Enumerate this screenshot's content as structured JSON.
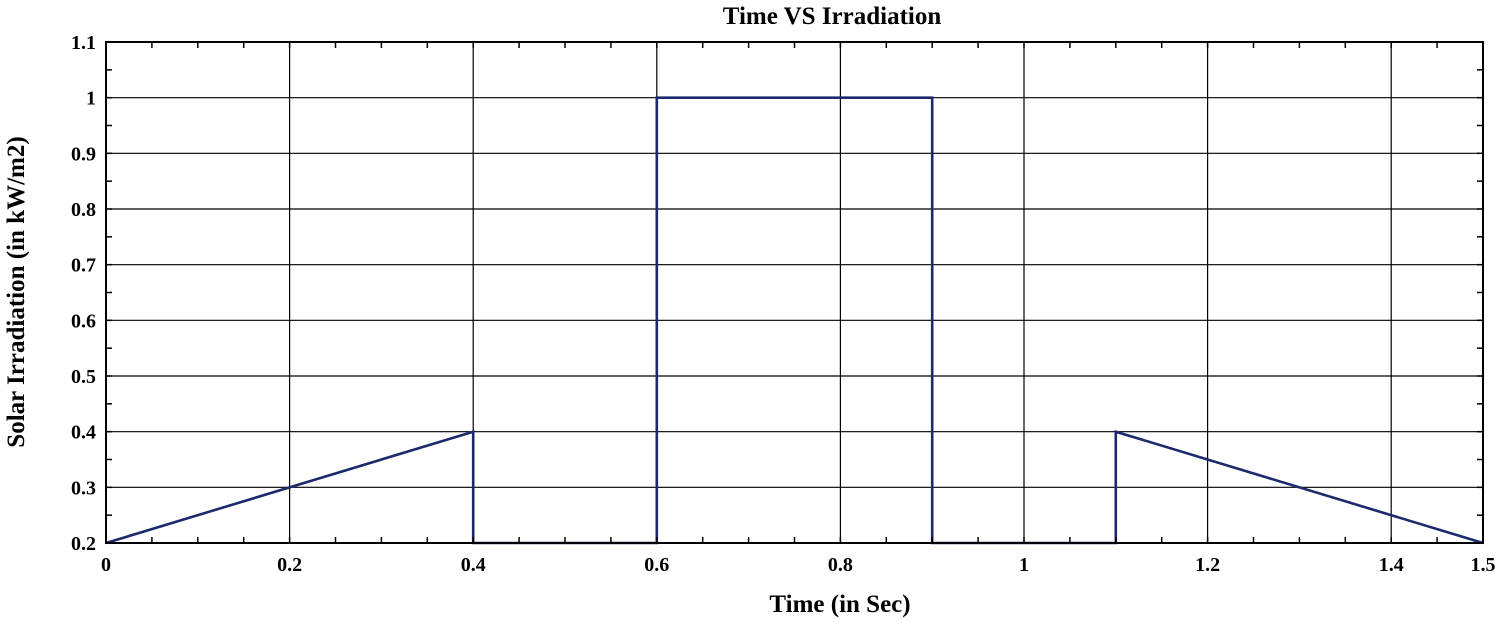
{
  "chart_data": {
    "type": "line",
    "title": "Time VS Irradiation",
    "xlabel": "Time (in Sec)",
    "ylabel": "Solar Irradiation (in kW/m2)",
    "xlim": [
      0,
      1.5
    ],
    "ylim": [
      0.2,
      1.1
    ],
    "xticks": [
      0,
      0.2,
      0.4,
      0.6,
      0.8,
      1,
      1.2,
      1.4,
      1.5
    ],
    "xtick_labels": [
      "0",
      "0.2",
      "0.4",
      "0.6",
      "0.8",
      "1",
      "1.2",
      "1.4",
      "1.5"
    ],
    "yticks": [
      0.2,
      0.3,
      0.4,
      0.5,
      0.6,
      0.7,
      0.8,
      0.9,
      1,
      1.1
    ],
    "ytick_labels": [
      "0.2",
      "0.3",
      "0.4",
      "0.5",
      "0.6",
      "0.7",
      "0.8",
      "0.9",
      "1",
      "1.1"
    ],
    "grid": true,
    "series": [
      {
        "color": "#1a2a6c",
        "x": [
          0,
          0.4,
          0.4,
          0.6,
          0.6,
          0.9,
          0.9,
          1.1,
          1.1,
          1.5
        ],
        "y": [
          0.2,
          0.4,
          0.2,
          0.2,
          1.0,
          1.0,
          0.2,
          0.2,
          0.4,
          0.2
        ]
      }
    ]
  }
}
